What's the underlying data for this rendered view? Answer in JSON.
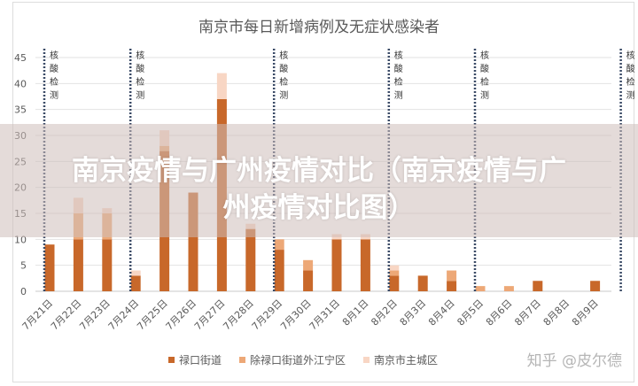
{
  "chart_data": {
    "type": "bar",
    "stacked": true,
    "title": "南京市每日新增病例及无症状感染者",
    "categories": [
      "7月21日",
      "7月22日",
      "7月23日",
      "7月24日",
      "7月25日",
      "7月26日",
      "7月27日",
      "7月28日",
      "7月29日",
      "7月30日",
      "7月31日",
      "8月1日",
      "8月2日",
      "8月3日",
      "8月4日",
      "8月5日",
      "8月6日",
      "8月7日",
      "8月8日",
      "8月9日"
    ],
    "series": [
      {
        "name": "禄口街道",
        "color": "#c8682a",
        "values": [
          9,
          10,
          10,
          3,
          27,
          19,
          37,
          12,
          8,
          4,
          10,
          10,
          3,
          3,
          2,
          0,
          0,
          2,
          0,
          2
        ]
      },
      {
        "name": "除禄口街道外江宁区",
        "color": "#eda877",
        "values": [
          0,
          5,
          5,
          0,
          1,
          0,
          0,
          0,
          2,
          2,
          0,
          0,
          1,
          0,
          2,
          1,
          1,
          0,
          0,
          0
        ]
      },
      {
        "name": "南京市主城区",
        "color": "#f8d6c4",
        "values": [
          0,
          3,
          1,
          1,
          3,
          0,
          5,
          1,
          0,
          0,
          1,
          1,
          1,
          0,
          0,
          0,
          0,
          0,
          0,
          0
        ]
      }
    ],
    "ylim": [
      0,
      45
    ],
    "yticks": [
      0,
      5,
      10,
      15,
      20,
      25,
      30,
      35,
      40,
      45
    ],
    "grid": true,
    "legend": "bottom",
    "annotations": {
      "label": [
        "核",
        "酸",
        "检",
        "测"
      ],
      "before_category_index": [
        0,
        3,
        8,
        12,
        15,
        20
      ]
    }
  },
  "overlay_title_line1": "南京疫情与广州疫情对比（南京疫情与广",
  "overlay_title_line2": "州疫情对比图）",
  "watermark": "知乎 @皮尔德"
}
